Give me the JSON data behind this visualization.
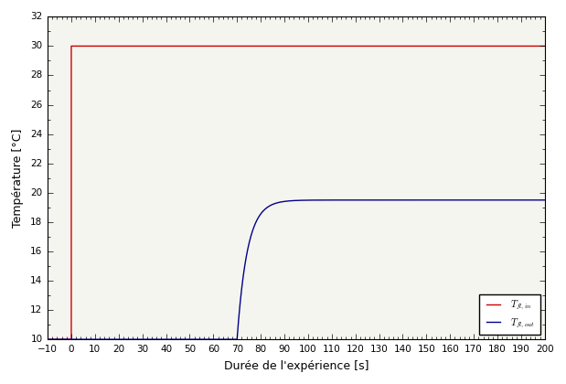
{
  "title": "",
  "xlabel": "Durée de l'expérience [s]",
  "ylabel": "Température [°C]",
  "xlim": [
    -10,
    200
  ],
  "ylim": [
    10,
    32
  ],
  "yticks": [
    10,
    12,
    14,
    16,
    18,
    20,
    22,
    24,
    26,
    28,
    30,
    32
  ],
  "xticks": [
    -10,
    0,
    10,
    20,
    30,
    40,
    50,
    60,
    70,
    80,
    90,
    100,
    110,
    120,
    130,
    140,
    150,
    160,
    170,
    180,
    190,
    200
  ],
  "line_in_color": "#cc0000",
  "line_out_color": "#00008b",
  "legend_label_in": "$T_{fl,in}$",
  "legend_label_out": "$T_{fl,out}$",
  "background_color": "#f5f5f0",
  "figsize": [
    6.19,
    4.2
  ],
  "dpi": 100,
  "t_start": 0.0,
  "t_rise": 70.0,
  "T_in_low": 10.0,
  "T_in_high": 30.0,
  "T_out_low": 10.0,
  "T_out_asymptote": 19.5,
  "T_out_at_rise": 16.5,
  "rise_rate": 0.45
}
